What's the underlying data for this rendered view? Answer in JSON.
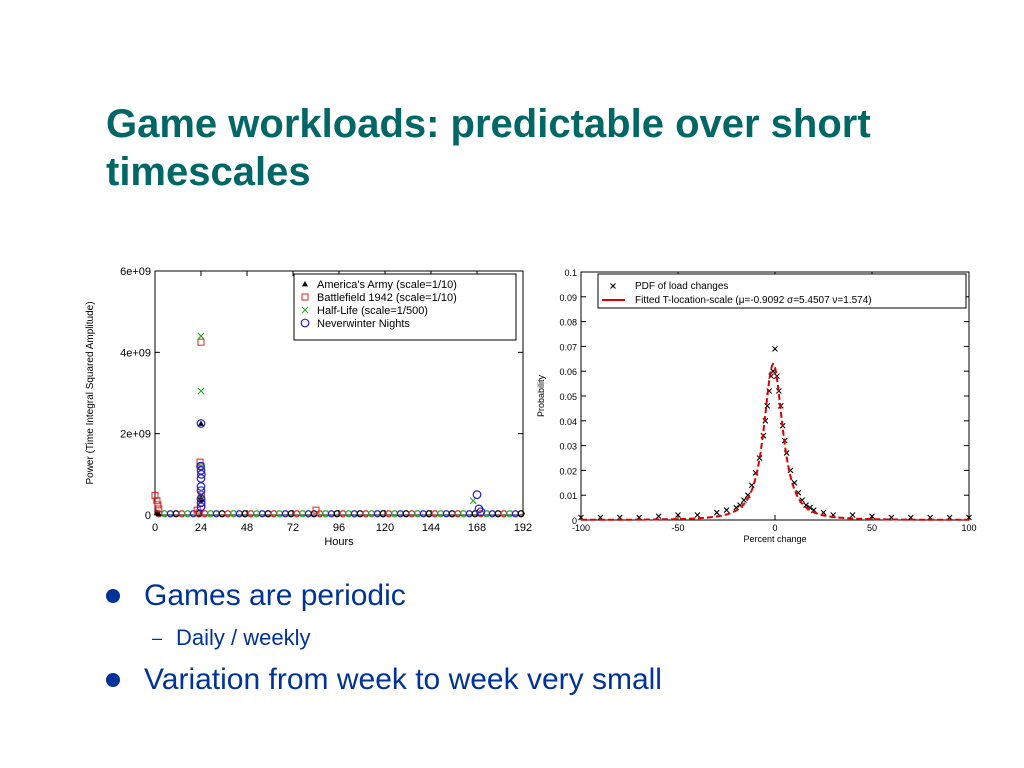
{
  "slide": {
    "title": "Game workloads: predictable over short timescales",
    "bullets": [
      {
        "text": "Games are periodic",
        "sub": [
          "Daily / weekly"
        ]
      },
      {
        "text": "Variation from week to week very small",
        "sub": []
      }
    ]
  },
  "chart_data": [
    {
      "type": "scatter",
      "xlabel": "Hours",
      "ylabel": "Power (Time Integral Squared Amplitude)",
      "xlim": [
        0,
        192
      ],
      "ylim": [
        0,
        6000000000.0
      ],
      "xticks": [
        0,
        24,
        48,
        72,
        96,
        120,
        144,
        168,
        192
      ],
      "yticks": [
        {
          "v": 0,
          "label": "0"
        },
        {
          "v": 2000000000.0,
          "label": "2e+09"
        },
        {
          "v": 4000000000.0,
          "label": "4e+09"
        },
        {
          "v": 6000000000.0,
          "label": "6e+09"
        }
      ],
      "legend_position": "top-right",
      "series": [
        {
          "name": "America's Army (scale=1/10)",
          "marker": "triangle",
          "color": "#000000",
          "x": [
            1,
            2,
            23.8,
            24,
            24.2
          ],
          "y": [
            60000000,
            30000000,
            450000000,
            2250000000,
            380000000
          ]
        },
        {
          "name": "Battlefield 1942 (scale=1/10)",
          "marker": "square",
          "color": "#dd2222",
          "x": [
            0,
            1,
            1.5,
            2,
            22,
            23,
            23.5,
            24,
            24,
            24.2,
            24.5,
            84
          ],
          "y": [
            480000000,
            350000000,
            250000000,
            150000000,
            120000000,
            50000000,
            1300000000,
            1200000000,
            4250000000,
            500000000,
            300000000,
            120000000
          ]
        },
        {
          "name": "Half-Life (scale=1/500)",
          "marker": "x",
          "color": "#22aa22",
          "x": [
            24,
            24,
            24,
            24.2,
            166
          ],
          "y": [
            4400000000,
            3050000000,
            1200000000,
            500000000,
            350000000
          ]
        },
        {
          "name": "Neverwinter Nights",
          "marker": "circle",
          "color": "#1f1fcc",
          "x": [
            24,
            23.8,
            24,
            24.2,
            24,
            24,
            24,
            24,
            24,
            24,
            168,
            169,
            170
          ],
          "y": [
            2250000000,
            1200000000,
            1100000000,
            1000000000,
            900000000,
            700000000,
            600000000,
            400000000,
            300000000,
            200000000,
            500000000,
            150000000,
            80000000
          ]
        }
      ]
    },
    {
      "type": "line",
      "xlabel": "Percent change",
      "ylabel": "Probability",
      "xlim": [
        -100,
        100
      ],
      "ylim": [
        0,
        0.1
      ],
      "xticks": [
        -100,
        -50,
        0,
        50,
        100
      ],
      "yticks": [
        {
          "v": 0,
          "label": "0"
        },
        {
          "v": 0.01,
          "label": "0.01"
        },
        {
          "v": 0.02,
          "label": "0.02"
        },
        {
          "v": 0.03,
          "label": "0.03"
        },
        {
          "v": 0.04,
          "label": "0.04"
        },
        {
          "v": 0.05,
          "label": "0.05"
        },
        {
          "v": 0.06,
          "label": "0.06"
        },
        {
          "v": 0.07,
          "label": "0.07"
        },
        {
          "v": 0.08,
          "label": "0.08"
        },
        {
          "v": 0.09,
          "label": "0.09"
        },
        {
          "v": 0.1,
          "label": "0.1"
        }
      ],
      "legend_position": "top",
      "series": [
        {
          "name": "PDF of load changes",
          "marker": "x",
          "color": "#000000",
          "x": [
            -100,
            -90,
            -80,
            -70,
            -60,
            -50,
            -40,
            -30,
            -25,
            -20,
            -18,
            -16,
            -14,
            -12,
            -10,
            -8,
            -6,
            -5,
            -4,
            -3,
            -2,
            -1,
            0,
            1,
            2,
            3,
            4,
            5,
            6,
            8,
            10,
            12,
            14,
            16,
            18,
            20,
            25,
            30,
            40,
            50,
            60,
            70,
            80,
            90,
            100
          ],
          "y": [
            0.001,
            0.001,
            0.001,
            0.001,
            0.0015,
            0.002,
            0.002,
            0.003,
            0.004,
            0.005,
            0.006,
            0.008,
            0.01,
            0.014,
            0.019,
            0.025,
            0.034,
            0.04,
            0.046,
            0.052,
            0.058,
            0.06,
            0.069,
            0.058,
            0.052,
            0.046,
            0.038,
            0.032,
            0.027,
            0.02,
            0.015,
            0.011,
            0.008,
            0.006,
            0.005,
            0.004,
            0.003,
            0.002,
            0.002,
            0.0015,
            0.001,
            0.001,
            0.001,
            0.001,
            0.001
          ]
        },
        {
          "name": "Fitted T-location-scale (μ=-0.9092  σ=5.4507  ν=1.574)",
          "marker": "dashed-line",
          "color": "#dd0000",
          "mu": -0.9092,
          "sigma": 5.4507,
          "nu": 1.574
        }
      ]
    }
  ]
}
